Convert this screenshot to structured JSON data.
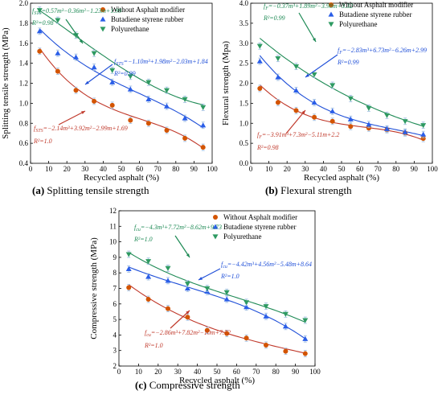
{
  "colors": {
    "red": "#c0392b",
    "blue": "#1f4fd8",
    "green": "#1e8a55",
    "fill_red": "#d35400",
    "fill_blue": "#2a5ee8",
    "fill_green": "#2e9a62"
  },
  "legend": [
    "Without Asphalt modifier",
    "Butadiene styrene rubber",
    "Polyurethane"
  ],
  "chart_data": [
    {
      "type": "scatter",
      "id": "a",
      "caption_letter": "(a)",
      "caption_text": " Splitting tensile strength",
      "xlabel": "Recycled asphalt (%)",
      "ylabel": "Splitting tensile strength (MPa)",
      "xlim": [
        0,
        100
      ],
      "ylim": [
        0.4,
        2.0
      ],
      "xticks": [
        "0",
        "10",
        "20",
        "30",
        "40",
        "50",
        "60",
        "70",
        "80",
        "90",
        "100"
      ],
      "yticks": [
        "0.4",
        "0.6",
        "0.8",
        "1.0",
        "1.2",
        "1.4",
        "1.6",
        "1.8",
        "2.0"
      ],
      "x": [
        5,
        15,
        25,
        35,
        45,
        55,
        65,
        75,
        85,
        95
      ],
      "series": [
        {
          "name": "Without Asphalt modifier",
          "values": [
            1.52,
            1.32,
            1.13,
            1.02,
            0.98,
            0.83,
            0.8,
            0.73,
            0.65,
            0.56
          ]
        },
        {
          "name": "Butadiene styrene rubber",
          "values": [
            1.72,
            1.5,
            1.46,
            1.36,
            1.21,
            1.14,
            1.04,
            0.97,
            0.85,
            0.78
          ]
        },
        {
          "name": "Polyurethane",
          "values": [
            1.93,
            1.83,
            1.68,
            1.5,
            1.33,
            1.27,
            1.21,
            1.13,
            1.04,
            0.96
          ]
        }
      ],
      "fits": [
        {
          "name": "Without Asphalt modifier",
          "coef": [
            1.69,
            -2.99,
            3.92,
            -2.14
          ]
        },
        {
          "name": "Butadiene styrene rubber",
          "coef": [
            1.84,
            -2.03,
            1.98,
            -1.1
          ]
        },
        {
          "name": "Polyurethane",
          "coef": [
            1.99,
            -1.23,
            -0.36,
            0.57
          ]
        }
      ],
      "annotations": [
        {
          "series": 2,
          "eq": "f_STS=0.57m³−0.36m²−1.23m+1.99",
          "r2": "R²=0.98"
        },
        {
          "series": 1,
          "eq": "f_STS=−1.10m³+1.98m²−2.03m+1.84",
          "r2": "R²=0.99"
        },
        {
          "series": 0,
          "eq": "f_STS=−2.14m³+3.92m²−2.99m+1.69",
          "r2": "R²=1.0"
        }
      ]
    },
    {
      "type": "scatter",
      "id": "b",
      "caption_letter": "(b)",
      "caption_text": " Flexural strength",
      "xlabel": "Recycled asphalt (%)",
      "ylabel": "Flexural strength (Mpa)",
      "xlim": [
        0,
        100
      ],
      "ylim": [
        0,
        4
      ],
      "xticks": [
        "0",
        "10",
        "20",
        "30",
        "40",
        "50",
        "60",
        "70",
        "80",
        "90",
        "100"
      ],
      "yticks": [
        "0.0",
        "0.5",
        "1.0",
        "1.5",
        "2.0",
        "2.5",
        "3.0",
        "3.5",
        "4.0"
      ],
      "x": [
        5,
        15,
        25,
        35,
        45,
        55,
        65,
        75,
        85,
        95
      ],
      "series": [
        {
          "name": "Without Asphalt modifier",
          "values": [
            1.87,
            1.52,
            1.32,
            1.15,
            1.05,
            0.92,
            0.88,
            0.84,
            0.76,
            0.62
          ]
        },
        {
          "name": "Butadiene styrene rubber",
          "values": [
            2.55,
            2.15,
            1.82,
            1.52,
            1.3,
            1.1,
            0.97,
            0.86,
            0.78,
            0.72
          ]
        },
        {
          "name": "Polyurethane",
          "values": [
            2.93,
            2.62,
            2.42,
            2.22,
            1.95,
            1.62,
            1.38,
            1.2,
            1.05,
            0.95
          ]
        }
      ],
      "fits": [
        {
          "name": "Without Asphalt modifier",
          "coef": [
            2.2,
            -5.11,
            7.3,
            -3.91
          ]
        },
        {
          "name": "Butadiene styrene rubber",
          "coef": [
            2.99,
            -6.26,
            6.73,
            -2.83
          ]
        },
        {
          "name": "Polyurethane",
          "coef": [
            3.32,
            -3.98,
            1.89,
            -0.37
          ]
        }
      ],
      "annotations": [
        {
          "series": 2,
          "eq": "f_F=−0.37m³+1.89m²−3.98m+3.32",
          "r2": "R²=0.99"
        },
        {
          "series": 1,
          "eq": "f_F=−2.83m³+6.73m²−6.26m+2.99",
          "r2": "R²=0.99"
        },
        {
          "series": 0,
          "eq": "f_F=−3.91m³+7.3m²−5.11m+2.2",
          "r2": "R²=0.98"
        }
      ]
    },
    {
      "type": "scatter",
      "id": "c",
      "caption_letter": "(c)",
      "caption_text": " Compressive strength",
      "xlabel": "Recycled asphalt (%)",
      "ylabel": "Compressive strength (MPa)",
      "xlim": [
        0,
        100
      ],
      "ylim": [
        2,
        12
      ],
      "xticks": [
        "0",
        "10",
        "20",
        "30",
        "40",
        "50",
        "60",
        "70",
        "80",
        "90",
        "100"
      ],
      "yticks": [
        "2",
        "3",
        "4",
        "5",
        "6",
        "7",
        "8",
        "9",
        "10",
        "11",
        "12"
      ],
      "x": [
        5,
        15,
        25,
        35,
        45,
        55,
        65,
        75,
        85,
        95
      ],
      "series": [
        {
          "name": "Without Asphalt modifier",
          "values": [
            7.05,
            6.3,
            5.7,
            5.15,
            4.3,
            4.1,
            3.8,
            3.35,
            2.95,
            2.8
          ]
        },
        {
          "name": "Butadiene styrene rubber",
          "values": [
            8.25,
            7.75,
            7.5,
            7.0,
            6.8,
            6.3,
            5.8,
            5.2,
            4.55,
            3.75
          ]
        },
        {
          "name": "Polyurethane",
          "values": [
            9.2,
            8.75,
            8.3,
            7.3,
            7.0,
            6.75,
            6.1,
            5.85,
            5.35,
            4.95
          ]
        }
      ],
      "fits": [
        {
          "name": "Without Asphalt modifier",
          "coef": [
            7.72,
            -10,
            7.82,
            -2.86
          ]
        },
        {
          "name": "Butadiene styrene rubber",
          "coef": [
            8.64,
            -5.48,
            4.56,
            -4.42
          ]
        },
        {
          "name": "Polyurethane",
          "coef": [
            9.73,
            -8.62,
            7.72,
            -4.3
          ]
        }
      ],
      "annotations": [
        {
          "series": 2,
          "eq": "f_cu=−4.3m³+7.72m²−8.62m+9.73",
          "r2": "R²=1.0"
        },
        {
          "series": 1,
          "eq": "f_cu=−4.42m³+4.56m²−5.48m+8.64",
          "r2": "R²=1.0"
        },
        {
          "series": 0,
          "eq": "f_cu=−2.86m³+7.82m²−10m+7.72",
          "r2": "R²=1.0"
        }
      ]
    }
  ]
}
